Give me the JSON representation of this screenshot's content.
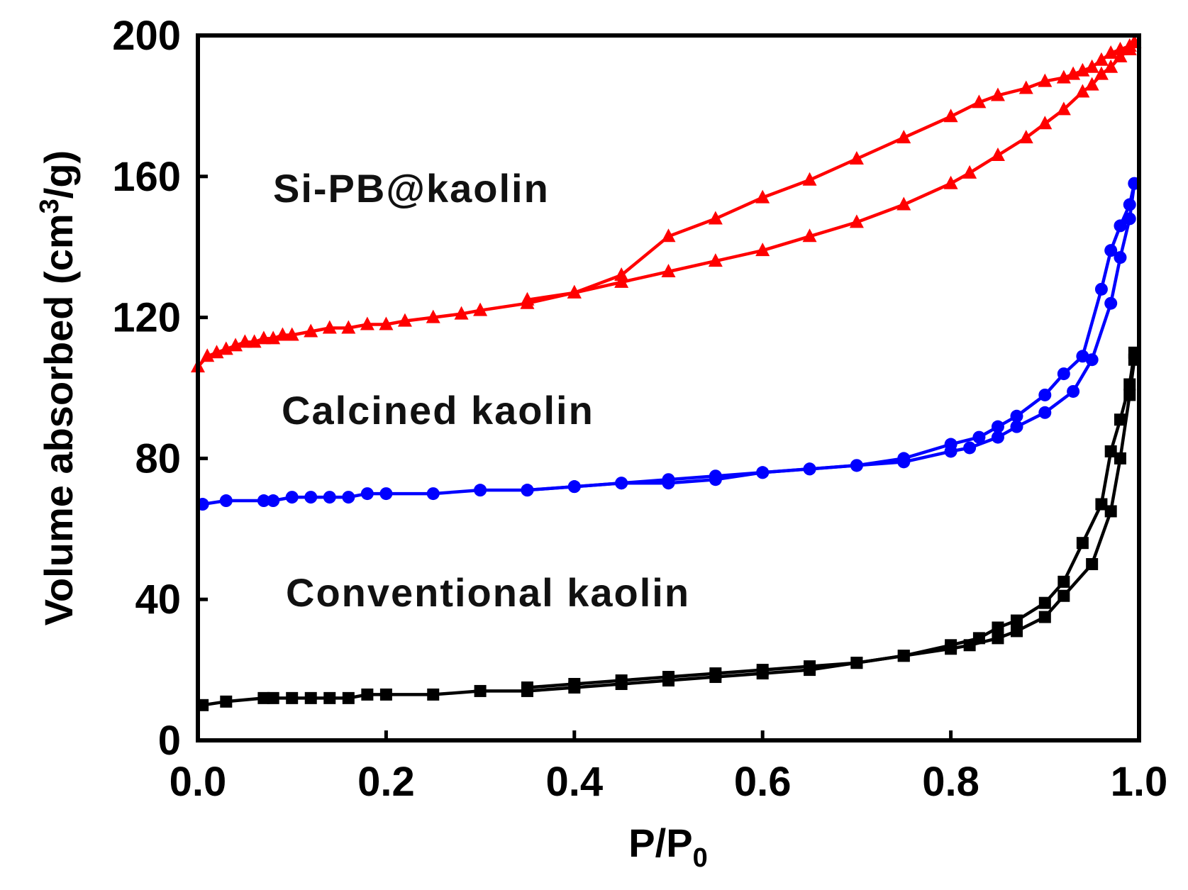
{
  "chart_data": {
    "type": "line",
    "title": "",
    "xlabel": {
      "main": "P/P",
      "sub": "0"
    },
    "ylabel": {
      "pre": "Volume absorbed (cm",
      "sup": "3",
      "post": "/g)"
    },
    "xlim": [
      0.0,
      1.0
    ],
    "ylim": [
      0,
      200
    ],
    "xticks": [
      0.0,
      0.2,
      0.4,
      0.6,
      0.8,
      1.0
    ],
    "xtick_labels": [
      "0.0",
      "0.2",
      "0.4",
      "0.6",
      "0.8",
      "1.0"
    ],
    "yticks": [
      0,
      40,
      80,
      120,
      160,
      200
    ],
    "ytick_labels": [
      "0",
      "40",
      "80",
      "120",
      "160",
      "200"
    ],
    "grid": false,
    "legend": "none",
    "annotations": [
      {
        "text": "Si-PB@kaolin",
        "x": 0.08,
        "y": 157
      },
      {
        "text": "Calcined kaolin",
        "x": 0.09,
        "y": 94
      },
      {
        "text": "Conventional kaolin",
        "x": 0.095,
        "y": 42
      }
    ],
    "series": [
      {
        "name": "Si-PB@kaolin adsorption",
        "color": "#ff0000",
        "marker": "triangle",
        "x": [
          0.0,
          0.01,
          0.02,
          0.03,
          0.04,
          0.05,
          0.06,
          0.07,
          0.08,
          0.09,
          0.1,
          0.12,
          0.14,
          0.16,
          0.18,
          0.2,
          0.22,
          0.25,
          0.28,
          0.3,
          0.35,
          0.4,
          0.45,
          0.5,
          0.55,
          0.6,
          0.65,
          0.7,
          0.75,
          0.8,
          0.82,
          0.85,
          0.88,
          0.9,
          0.92,
          0.94,
          0.95,
          0.96,
          0.97,
          0.98,
          0.99,
          0.995
        ],
        "y": [
          106,
          109,
          110,
          111,
          112,
          113,
          113,
          114,
          114,
          115,
          115,
          116,
          117,
          117,
          118,
          118,
          119,
          120,
          121,
          122,
          124,
          127,
          130,
          133,
          136,
          139,
          143,
          147,
          152,
          158,
          161,
          166,
          171,
          175,
          179,
          184,
          186,
          189,
          191,
          194,
          196,
          198
        ]
      },
      {
        "name": "Si-PB@kaolin desorption",
        "color": "#ff0000",
        "marker": "triangle",
        "x": [
          0.995,
          0.99,
          0.98,
          0.97,
          0.96,
          0.95,
          0.94,
          0.93,
          0.92,
          0.9,
          0.88,
          0.85,
          0.83,
          0.8,
          0.75,
          0.7,
          0.65,
          0.6,
          0.55,
          0.5,
          0.45,
          0.4,
          0.35
        ],
        "y": [
          198,
          197,
          196,
          195,
          193,
          191,
          190,
          189,
          188,
          187,
          185,
          183,
          181,
          177,
          171,
          165,
          159,
          154,
          148,
          143,
          132,
          127,
          125
        ]
      },
      {
        "name": "Calcined kaolin adsorption",
        "color": "#0000ff",
        "marker": "circle",
        "x": [
          0.005,
          0.03,
          0.07,
          0.08,
          0.1,
          0.12,
          0.14,
          0.16,
          0.18,
          0.2,
          0.25,
          0.3,
          0.35,
          0.4,
          0.45,
          0.5,
          0.55,
          0.6,
          0.65,
          0.7,
          0.75,
          0.8,
          0.82,
          0.85,
          0.87,
          0.9,
          0.93,
          0.95,
          0.97,
          0.98,
          0.99,
          0.995
        ],
        "y": [
          67,
          68,
          68,
          68,
          69,
          69,
          69,
          69,
          70,
          70,
          70,
          71,
          71,
          72,
          73,
          73,
          74,
          76,
          77,
          78,
          79,
          82,
          83,
          86,
          89,
          93,
          99,
          108,
          124,
          137,
          148,
          158
        ]
      },
      {
        "name": "Calcined kaolin desorption",
        "color": "#0000ff",
        "marker": "circle",
        "x": [
          0.995,
          0.99,
          0.98,
          0.97,
          0.96,
          0.94,
          0.92,
          0.9,
          0.87,
          0.85,
          0.83,
          0.8,
          0.75,
          0.7,
          0.65,
          0.6,
          0.55,
          0.5,
          0.45,
          0.4,
          0.35
        ],
        "y": [
          158,
          152,
          146,
          139,
          128,
          109,
          104,
          98,
          92,
          89,
          86,
          84,
          80,
          78,
          77,
          76,
          75,
          74,
          73,
          72,
          71
        ]
      },
      {
        "name": "Conventional kaolin adsorption",
        "color": "#000000",
        "marker": "square",
        "x": [
          0.005,
          0.03,
          0.07,
          0.08,
          0.1,
          0.12,
          0.14,
          0.16,
          0.18,
          0.2,
          0.25,
          0.3,
          0.35,
          0.4,
          0.45,
          0.5,
          0.55,
          0.6,
          0.65,
          0.7,
          0.75,
          0.8,
          0.82,
          0.85,
          0.87,
          0.9,
          0.92,
          0.95,
          0.97,
          0.98,
          0.99,
          0.995
        ],
        "y": [
          10,
          11,
          12,
          12,
          12,
          12,
          12,
          12,
          13,
          13,
          13,
          14,
          14,
          15,
          16,
          17,
          18,
          19,
          20,
          22,
          24,
          26,
          27,
          29,
          31,
          35,
          41,
          50,
          65,
          80,
          98,
          108
        ]
      },
      {
        "name": "Conventional kaolin desorption",
        "color": "#000000",
        "marker": "square",
        "x": [
          0.995,
          0.99,
          0.98,
          0.97,
          0.96,
          0.94,
          0.92,
          0.9,
          0.87,
          0.85,
          0.83,
          0.8,
          0.75,
          0.7,
          0.65,
          0.6,
          0.55,
          0.5,
          0.45,
          0.4,
          0.35
        ],
        "y": [
          110,
          101,
          91,
          82,
          67,
          56,
          45,
          39,
          34,
          32,
          29,
          27,
          24,
          22,
          21,
          20,
          19,
          18,
          17,
          16,
          15
        ]
      }
    ]
  }
}
